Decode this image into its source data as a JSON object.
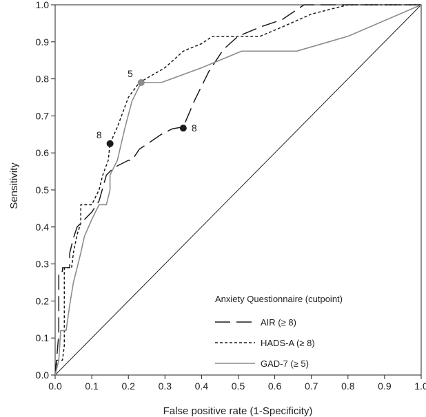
{
  "chart_data": {
    "type": "line",
    "title": "",
    "xlabel": "False positive rate (1-Specificity)",
    "ylabel": "Sensitivity",
    "xlim": [
      0,
      1
    ],
    "ylim": [
      0,
      1
    ],
    "x_ticks": [
      "0.0",
      "0.1",
      "0.2",
      "0.3",
      "0.4",
      "0.5",
      "0.6",
      "0.7",
      "0.8",
      "0.9",
      "1.0"
    ],
    "y_ticks": [
      "0.0",
      "0.1",
      "0.2",
      "0.3",
      "0.4",
      "0.5",
      "0.6",
      "0.7",
      "0.8",
      "0.9",
      "1.0"
    ],
    "grid": false,
    "legend": {
      "title": "Anxiety Questionnaire (cutpoint)",
      "placement": "bottom-right"
    },
    "reference_line": {
      "x": [
        0,
        1
      ],
      "y": [
        0,
        1
      ],
      "color": "#222222"
    },
    "series": [
      {
        "name": "AIR (≥ 8)",
        "style": "long-dash",
        "color": "#1a1a1a",
        "x": [
          0,
          0.01,
          0.01,
          0.02,
          0.02,
          0.04,
          0.04,
          0.05,
          0.06,
          0.08,
          0.1,
          0.12,
          0.14,
          0.16,
          0.2,
          0.21,
          0.23,
          0.26,
          0.29,
          0.32,
          0.35,
          0.38,
          0.42,
          0.46,
          0.5,
          0.56,
          0.62,
          0.68,
          0.8,
          0.9,
          1.0
        ],
        "y": [
          0,
          0.11,
          0.28,
          0.28,
          0.29,
          0.29,
          0.33,
          0.37,
          0.4,
          0.42,
          0.44,
          0.47,
          0.54,
          0.56,
          0.58,
          0.58,
          0.61,
          0.63,
          0.65,
          0.665,
          0.67,
          0.74,
          0.82,
          0.88,
          0.915,
          0.94,
          0.96,
          1.0,
          1.0,
          1.0,
          1.0
        ]
      },
      {
        "name": "HADS-A (≥ 8)",
        "style": "short-dash",
        "color": "#1a1a1a",
        "x": [
          0,
          0.005,
          0.005,
          0.02,
          0.025,
          0.025,
          0.045,
          0.05,
          0.06,
          0.07,
          0.07,
          0.1,
          0.12,
          0.13,
          0.145,
          0.15,
          0.17,
          0.2,
          0.23,
          0.3,
          0.35,
          0.4,
          0.43,
          0.52,
          0.56,
          0.62,
          0.7,
          0.8,
          0.9,
          1.0
        ],
        "y": [
          0,
          0.04,
          0.04,
          0.04,
          0.08,
          0.29,
          0.29,
          0.33,
          0.38,
          0.41,
          0.46,
          0.46,
          0.5,
          0.54,
          0.58,
          0.625,
          0.67,
          0.75,
          0.79,
          0.83,
          0.875,
          0.895,
          0.915,
          0.915,
          0.915,
          0.94,
          0.975,
          1.0,
          1.0,
          1.0
        ]
      },
      {
        "name": "GAD-7 (≥ 5)",
        "style": "solid",
        "color": "#8c8c8c",
        "x": [
          0,
          0.01,
          0.015,
          0.03,
          0.04,
          0.05,
          0.05,
          0.06,
          0.07,
          0.08,
          0.1,
          0.12,
          0.12,
          0.14,
          0.15,
          0.15,
          0.17,
          0.19,
          0.21,
          0.23,
          0.24,
          0.29,
          0.4,
          0.51,
          0.66,
          0.8,
          1.0
        ],
        "y": [
          0,
          0.04,
          0.12,
          0.12,
          0.19,
          0.25,
          0.25,
          0.29,
          0.33,
          0.375,
          0.42,
          0.46,
          0.46,
          0.46,
          0.5,
          0.54,
          0.58,
          0.665,
          0.74,
          0.78,
          0.79,
          0.79,
          0.83,
          0.875,
          0.875,
          0.915,
          1.0
        ]
      }
    ],
    "cutpoints": [
      {
        "series": "AIR (≥ 8)",
        "label": "8",
        "x": 0.35,
        "y": 0.667,
        "color": "#1a1a1a",
        "label_side": "right"
      },
      {
        "series": "HADS-A (≥ 8)",
        "label": "8",
        "x": 0.15,
        "y": 0.625,
        "color": "#1a1a1a",
        "label_side": "left"
      },
      {
        "series": "GAD-7 (≥ 5)",
        "label": "5",
        "x": 0.235,
        "y": 0.79,
        "color": "#8c8c8c",
        "label_side": "left"
      }
    ]
  }
}
